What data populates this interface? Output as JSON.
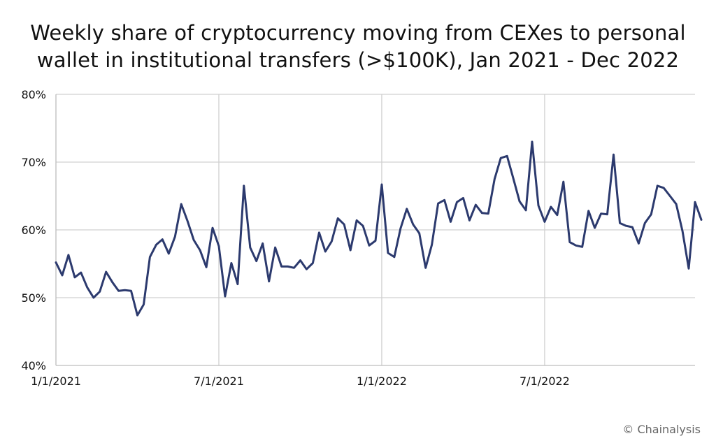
{
  "chart_data": {
    "type": "line",
    "title_lines": [
      "Weekly share of cryptocurrency moving from CEXes to personal",
      "wallet in institutional transfers (>$100K), Jan 2021 - Dec 2022"
    ],
    "xlabel": "",
    "ylabel": "",
    "x_ticks": [
      {
        "label": "1/1/2021",
        "week": 0
      },
      {
        "label": "7/1/2021",
        "week": 26
      },
      {
        "label": "1/1/2022",
        "week": 52
      },
      {
        "label": "7/1/2022",
        "week": 78
      }
    ],
    "x_range": [
      0,
      102
    ],
    "y_ticks": [
      40,
      50,
      60,
      70,
      80
    ],
    "y_tick_labels": [
      "40%",
      "50%",
      "60%",
      "70%",
      "80%"
    ],
    "ylim": [
      40,
      80
    ],
    "grid": {
      "horizontal": true,
      "vertical": true
    },
    "line_color": "#2c3a6e",
    "series": [
      {
        "values": [
          55.2,
          53.3,
          56.3,
          53.0,
          53.7,
          51.5,
          50.0,
          50.9,
          53.8,
          52.3,
          51.0,
          51.1,
          51.0,
          47.4,
          49.0,
          56.0,
          57.8,
          58.6,
          56.5,
          59.0,
          63.8,
          61.3,
          58.5,
          57.0,
          54.5,
          60.3,
          57.6,
          50.2,
          55.1,
          52.0,
          66.5,
          57.4,
          55.4,
          58.0,
          52.4,
          57.4,
          54.6,
          54.6,
          54.4,
          55.5,
          54.2,
          55.1,
          59.6,
          56.8,
          58.3,
          61.7,
          60.8,
          57.0,
          61.4,
          60.6,
          57.7,
          58.4,
          66.7,
          56.6,
          56.0,
          60.2,
          63.1,
          60.8,
          59.5,
          54.4,
          57.8,
          63.9,
          64.4,
          61.2,
          64.1,
          64.7,
          61.4,
          63.7,
          62.5,
          62.4,
          67.5,
          70.6,
          70.9,
          67.6,
          64.2,
          62.9,
          73.0,
          63.6,
          61.2,
          63.4,
          62.2,
          67.1,
          58.2,
          57.7,
          57.5,
          62.8,
          60.3,
          62.4,
          62.3,
          71.1,
          61.0,
          60.6,
          60.4,
          58.0,
          61.0,
          62.3,
          66.5,
          66.2,
          65.0,
          63.8,
          59.8,
          54.3,
          64.1,
          61.5
        ]
      }
    ]
  },
  "watermark": "© Chainalysis"
}
